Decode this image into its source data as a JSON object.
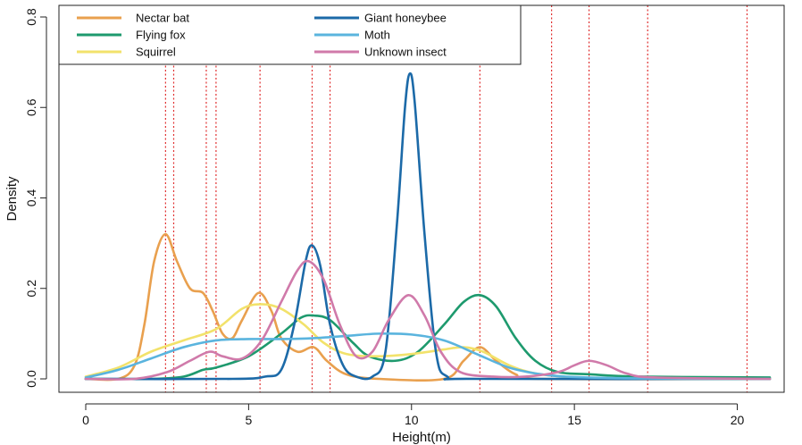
{
  "chart_data": {
    "type": "line",
    "xlabel": "Height(m)",
    "ylabel": "Density",
    "xlim": [
      0,
      21
    ],
    "ylim": [
      0,
      0.8
    ],
    "x_ticks": [
      "0",
      "5",
      "10",
      "15",
      "20"
    ],
    "y_ticks": [
      "0.0",
      "0.2",
      "0.4",
      "0.6",
      "0.8"
    ],
    "legend_position": "top-left",
    "grid": false,
    "vertical_reference_lines": {
      "color": "#e03030",
      "style": "dotted",
      "x": [
        2.45,
        2.7,
        3.7,
        4.0,
        5.35,
        6.95,
        7.5,
        12.1,
        14.3,
        15.45,
        17.25,
        20.3
      ]
    },
    "series": [
      {
        "name": "Nectar bat",
        "color": "#e9a04e",
        "points": [
          [
            0,
            0.0
          ],
          [
            1.0,
            0.0
          ],
          [
            1.5,
            0.03
          ],
          [
            1.8,
            0.12
          ],
          [
            2.1,
            0.26
          ],
          [
            2.45,
            0.32
          ],
          [
            2.8,
            0.26
          ],
          [
            3.2,
            0.2
          ],
          [
            3.6,
            0.19
          ],
          [
            3.9,
            0.15
          ],
          [
            4.2,
            0.1
          ],
          [
            4.5,
            0.09
          ],
          [
            4.8,
            0.13
          ],
          [
            5.3,
            0.19
          ],
          [
            5.7,
            0.15
          ],
          [
            6.0,
            0.09
          ],
          [
            6.5,
            0.06
          ],
          [
            7.0,
            0.07
          ],
          [
            7.4,
            0.04
          ],
          [
            8.0,
            0.01
          ],
          [
            9.0,
            0.0
          ],
          [
            11.0,
            0.0
          ],
          [
            11.6,
            0.04
          ],
          [
            12.1,
            0.07
          ],
          [
            12.6,
            0.04
          ],
          [
            13.2,
            0.01
          ],
          [
            14.0,
            0.0
          ],
          [
            21.0,
            0.0
          ]
        ]
      },
      {
        "name": "Flying fox",
        "color": "#1e9a6e",
        "points": [
          [
            0,
            0.0
          ],
          [
            2.0,
            0.0
          ],
          [
            3.0,
            0.005
          ],
          [
            3.6,
            0.02
          ],
          [
            4.0,
            0.025
          ],
          [
            5.0,
            0.05
          ],
          [
            6.0,
            0.1
          ],
          [
            6.6,
            0.135
          ],
          [
            7.0,
            0.14
          ],
          [
            7.5,
            0.13
          ],
          [
            8.2,
            0.08
          ],
          [
            8.7,
            0.05
          ],
          [
            9.5,
            0.04
          ],
          [
            10.2,
            0.06
          ],
          [
            11.0,
            0.12
          ],
          [
            11.6,
            0.17
          ],
          [
            12.1,
            0.185
          ],
          [
            12.6,
            0.16
          ],
          [
            13.2,
            0.09
          ],
          [
            13.8,
            0.04
          ],
          [
            14.5,
            0.015
          ],
          [
            15.5,
            0.01
          ],
          [
            17.0,
            0.005
          ],
          [
            21.0,
            0.003
          ]
        ]
      },
      {
        "name": "Squirrel",
        "color": "#f2e26b",
        "points": [
          [
            0,
            0.005
          ],
          [
            1.0,
            0.025
          ],
          [
            2.0,
            0.06
          ],
          [
            3.0,
            0.085
          ],
          [
            4.0,
            0.11
          ],
          [
            4.8,
            0.155
          ],
          [
            5.4,
            0.165
          ],
          [
            6.0,
            0.155
          ],
          [
            6.7,
            0.12
          ],
          [
            7.3,
            0.08
          ],
          [
            8.0,
            0.055
          ],
          [
            9.0,
            0.05
          ],
          [
            10.0,
            0.055
          ],
          [
            11.0,
            0.065
          ],
          [
            11.6,
            0.07
          ],
          [
            12.2,
            0.06
          ],
          [
            13.0,
            0.03
          ],
          [
            13.8,
            0.012
          ],
          [
            15.0,
            0.003
          ],
          [
            16.0,
            0.0
          ],
          [
            21.0,
            0.0
          ]
        ]
      },
      {
        "name": "Giant honeybee",
        "color": "#1c6aa8",
        "points": [
          [
            0,
            0.0
          ],
          [
            4.5,
            0.0
          ],
          [
            5.5,
            0.005
          ],
          [
            6.0,
            0.02
          ],
          [
            6.4,
            0.12
          ],
          [
            6.75,
            0.26
          ],
          [
            6.95,
            0.295
          ],
          [
            7.2,
            0.25
          ],
          [
            7.5,
            0.12
          ],
          [
            7.9,
            0.03
          ],
          [
            8.3,
            0.005
          ],
          [
            8.8,
            0.005
          ],
          [
            9.2,
            0.06
          ],
          [
            9.55,
            0.34
          ],
          [
            9.8,
            0.6
          ],
          [
            9.95,
            0.675
          ],
          [
            10.1,
            0.61
          ],
          [
            10.4,
            0.32
          ],
          [
            10.75,
            0.06
          ],
          [
            11.1,
            0.005
          ],
          [
            12.0,
            0.0
          ],
          [
            21.0,
            0.0
          ]
        ]
      },
      {
        "name": "Moth",
        "color": "#5ab4de",
        "points": [
          [
            0,
            0.003
          ],
          [
            1.0,
            0.02
          ],
          [
            2.0,
            0.045
          ],
          [
            3.0,
            0.07
          ],
          [
            4.0,
            0.085
          ],
          [
            5.0,
            0.088
          ],
          [
            6.0,
            0.088
          ],
          [
            7.0,
            0.09
          ],
          [
            8.0,
            0.095
          ],
          [
            9.0,
            0.1
          ],
          [
            10.0,
            0.098
          ],
          [
            11.0,
            0.085
          ],
          [
            12.0,
            0.055
          ],
          [
            13.0,
            0.025
          ],
          [
            14.0,
            0.01
          ],
          [
            15.0,
            0.004
          ],
          [
            17.0,
            0.001
          ],
          [
            21.0,
            0.0
          ]
        ]
      },
      {
        "name": "Unknown insect",
        "color": "#d07aaa",
        "points": [
          [
            0,
            0.0
          ],
          [
            1.5,
            0.0
          ],
          [
            2.5,
            0.015
          ],
          [
            3.2,
            0.04
          ],
          [
            3.8,
            0.06
          ],
          [
            4.2,
            0.05
          ],
          [
            4.8,
            0.045
          ],
          [
            5.4,
            0.085
          ],
          [
            6.0,
            0.17
          ],
          [
            6.5,
            0.24
          ],
          [
            6.85,
            0.26
          ],
          [
            7.3,
            0.22
          ],
          [
            7.8,
            0.12
          ],
          [
            8.3,
            0.05
          ],
          [
            8.8,
            0.06
          ],
          [
            9.3,
            0.13
          ],
          [
            9.9,
            0.185
          ],
          [
            10.4,
            0.14
          ],
          [
            10.9,
            0.06
          ],
          [
            11.5,
            0.015
          ],
          [
            12.5,
            0.005
          ],
          [
            13.5,
            0.005
          ],
          [
            14.5,
            0.015
          ],
          [
            15.0,
            0.03
          ],
          [
            15.45,
            0.04
          ],
          [
            16.0,
            0.03
          ],
          [
            16.6,
            0.012
          ],
          [
            17.5,
            0.003
          ],
          [
            21.0,
            0.0
          ]
        ]
      }
    ]
  }
}
